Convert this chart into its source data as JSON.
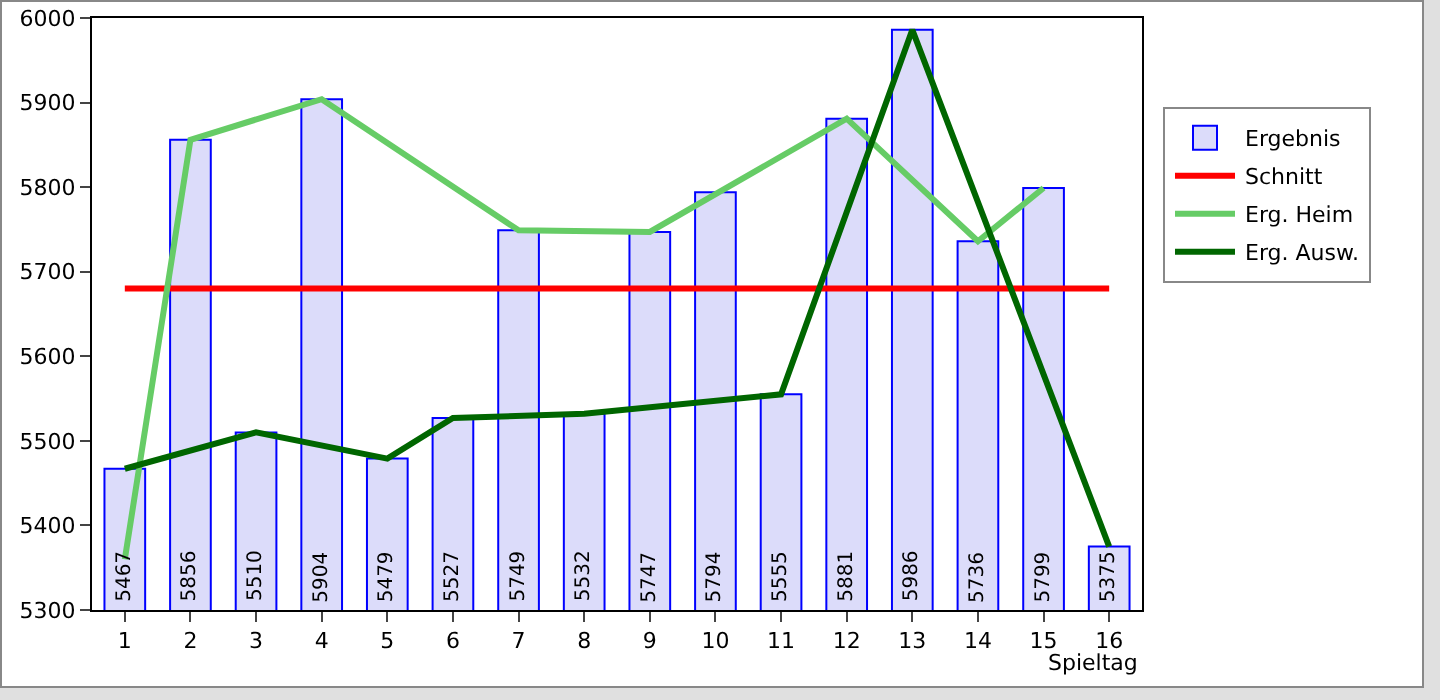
{
  "chart_data": {
    "type": "bar",
    "xlabel": "Spieltag",
    "x": [
      1,
      2,
      3,
      4,
      5,
      6,
      7,
      8,
      9,
      10,
      11,
      12,
      13,
      14,
      15,
      16
    ],
    "xlim": [
      0.5,
      16.5
    ],
    "xticks": [
      1,
      2,
      3,
      4,
      5,
      6,
      7,
      8,
      9,
      10,
      11,
      12,
      13,
      14,
      15,
      16
    ],
    "ylim": [
      5300,
      6000
    ],
    "yticks": [
      5300,
      5400,
      5500,
      5600,
      5700,
      5800,
      5900,
      6000
    ],
    "legend": "right",
    "grid": false,
    "marker": "none",
    "series": [
      {
        "name": "Ergebnis",
        "color": "#dcdcfa",
        "values": [
          5467,
          5856,
          5510,
          5904,
          5479,
          5527,
          5749,
          5532,
          5747,
          5794,
          5555,
          5881,
          5986,
          5736,
          5799,
          5375
        ],
        "value_labels": [
          "5467",
          "5856",
          "5510",
          "5904",
          "5479",
          "5527",
          "5749",
          "5532",
          "5747",
          "5794",
          "5555",
          "5881",
          "5986",
          "5736",
          "5799",
          "5375"
        ]
      },
      {
        "name": "Schnitt",
        "type": "line",
        "color": "#ff0000",
        "x": [
          1,
          16
        ],
        "values": [
          5680,
          5680
        ]
      },
      {
        "name": "Erg. Heim",
        "type": "line",
        "color": "#66cc66",
        "x": [
          1,
          2,
          4,
          7,
          9,
          12,
          14,
          15
        ],
        "values": [
          5360,
          5856,
          5904,
          5749,
          5747,
          5881,
          5736,
          5799
        ]
      },
      {
        "name": "Erg. Ausw.",
        "type": "line",
        "color": "#006600",
        "x": [
          1,
          3,
          5,
          6,
          8,
          11,
          13,
          16
        ],
        "values": [
          5467,
          5510,
          5479,
          5527,
          5532,
          5555,
          5986,
          5375
        ]
      }
    ]
  }
}
